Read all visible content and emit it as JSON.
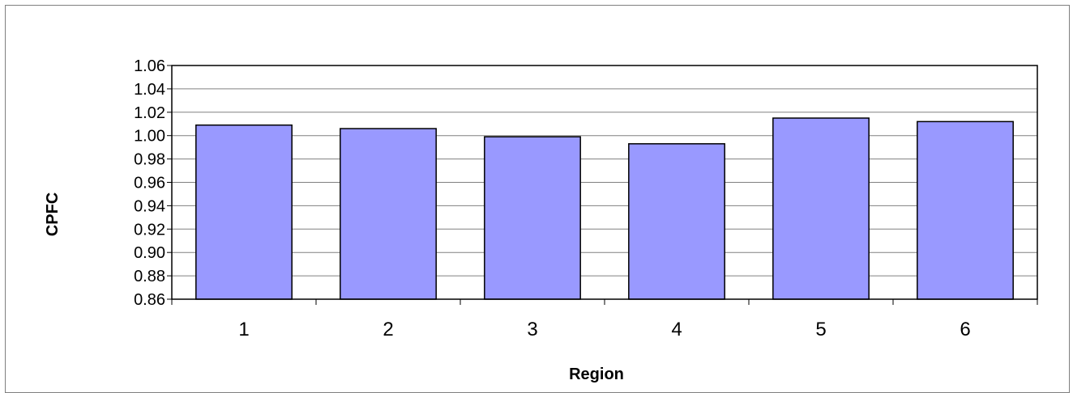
{
  "chart_data": {
    "type": "bar",
    "categories": [
      "1",
      "2",
      "3",
      "4",
      "5",
      "6"
    ],
    "values": [
      1.009,
      1.006,
      0.999,
      0.993,
      1.015,
      1.012
    ],
    "title": "",
    "xlabel": "Region",
    "ylabel": "CPFC",
    "ylim": [
      0.86,
      1.06
    ],
    "ytick_step": 0.02,
    "ytick_decimals": 2,
    "grid": true,
    "colors": {
      "bar_fill": "#9999ff",
      "bar_stroke": "#000000",
      "grid": "#808080",
      "frame": "#7f7f7f"
    }
  }
}
